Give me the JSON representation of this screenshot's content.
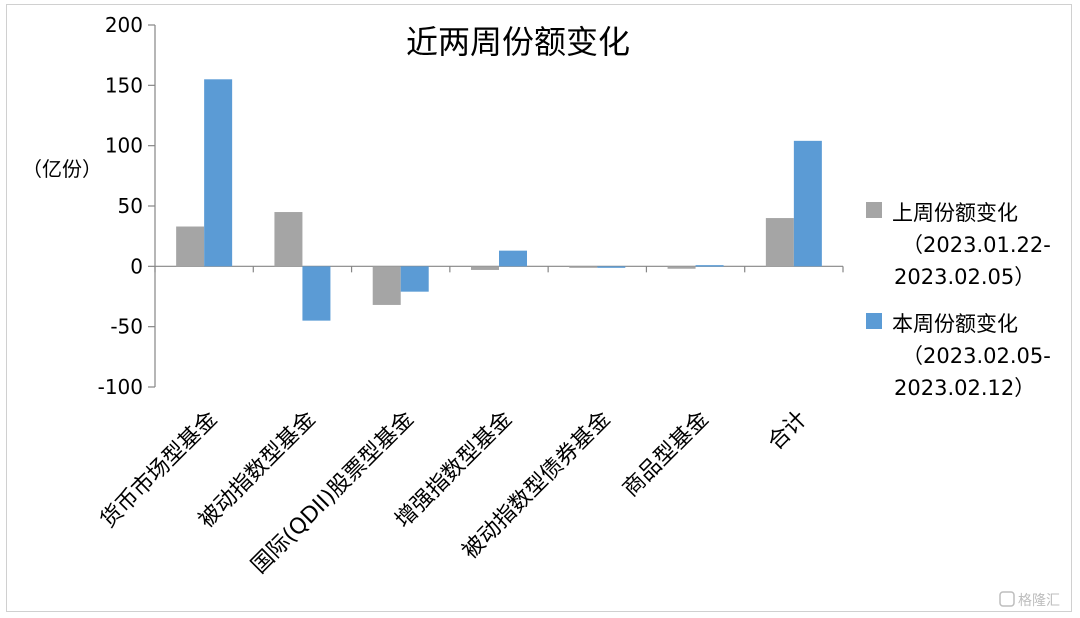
{
  "chart_data": {
    "type": "bar",
    "title": "近两周份额变化",
    "ylabel": "（亿份）",
    "ylim": [
      -100,
      200
    ],
    "yticks": [
      200,
      150,
      100,
      50,
      0,
      -50,
      -100
    ],
    "categories": [
      "货币市场型基金",
      "被动指数型基金",
      "国际(QDII)股票型基金",
      "增强指数型基金",
      "被动指数型债券基金",
      "商品型基金",
      "合计"
    ],
    "series": [
      {
        "name": "上周份额变化",
        "legend_lines": [
          "上周份额变化",
          "（2023.01.22-",
          "2023.02.05）"
        ],
        "color": "#a5a5a5",
        "values": [
          33,
          45,
          -32,
          -3,
          -1,
          -2,
          40
        ]
      },
      {
        "name": "本周份额变化",
        "legend_lines": [
          "本周份额变化",
          "（2023.02.05-",
          "2023.02.12）"
        ],
        "color": "#5b9bd5",
        "values": [
          155,
          -45,
          -21,
          13,
          -1,
          1,
          104
        ]
      }
    ],
    "grid": false,
    "legend": "right"
  },
  "watermark": "格隆汇"
}
